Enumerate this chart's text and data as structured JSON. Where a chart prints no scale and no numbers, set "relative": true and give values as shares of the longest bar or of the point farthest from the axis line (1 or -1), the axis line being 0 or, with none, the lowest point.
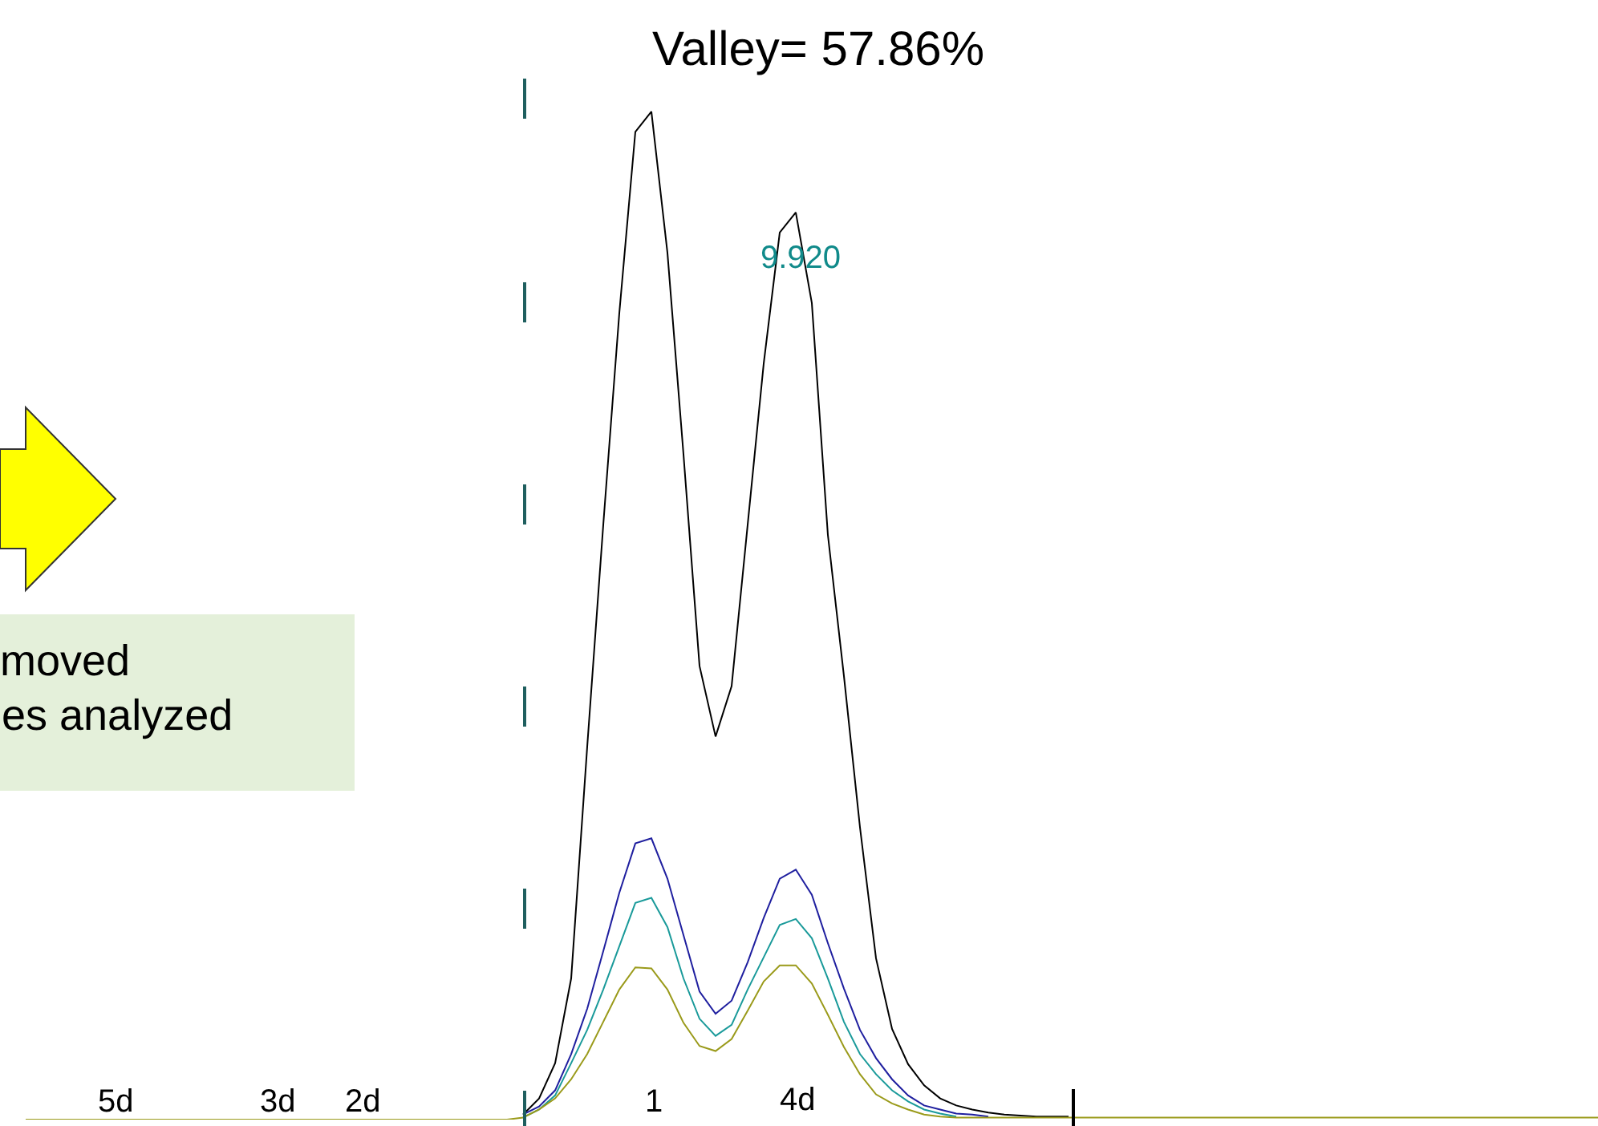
{
  "chart_data": {
    "type": "line",
    "title": "Valley= 57.86%",
    "relative": true,
    "grid": false,
    "categories": [
      null,
      null,
      null,
      null,
      null,
      null,
      null,
      null,
      null,
      null,
      null,
      null,
      null,
      null,
      null,
      null,
      null,
      null,
      null,
      null,
      null,
      null,
      null,
      null,
      null,
      null,
      null,
      null,
      null,
      null,
      null,
      null,
      null,
      null,
      null,
      null,
      null,
      null,
      null,
      null,
      null,
      null,
      null,
      null,
      null,
      null,
      null,
      null,
      null,
      null,
      null,
      null,
      null,
      null,
      null,
      null,
      null,
      null,
      null,
      null,
      null,
      null,
      null,
      null,
      null,
      null,
      null,
      null,
      null,
      null,
      null,
      null,
      null,
      null,
      null,
      null,
      null,
      null,
      null,
      null,
      null,
      null,
      null,
      null,
      null,
      null,
      null,
      null,
      null,
      null,
      null,
      null,
      null,
      null,
      null,
      null,
      null,
      null,
      null
    ],
    "series": [
      {
        "color": "#000000",
        "values": [
          null,
          null,
          null,
          null,
          null,
          null,
          null,
          null,
          null,
          null,
          null,
          null,
          null,
          null,
          null,
          null,
          null,
          null,
          null,
          null,
          null,
          null,
          null,
          null,
          null,
          null,
          null,
          null,
          null,
          null,
          null,
          0.005,
          0.021,
          0.056,
          0.14,
          0.37,
          0.59,
          0.8,
          0.98,
          1,
          0.86,
          0.66,
          0.45,
          0.38,
          0.43,
          0.59,
          0.75,
          0.88,
          0.9,
          0.81,
          0.58,
          0.44,
          0.29,
          0.16,
          0.09,
          0.055,
          0.034,
          0.021,
          0.014,
          0.01,
          0.007,
          0.005,
          0.004,
          0.003,
          0.003,
          0.003,
          null,
          null,
          null,
          null,
          null,
          null,
          null,
          null,
          null,
          null,
          null,
          null,
          null,
          null,
          null,
          null,
          null,
          null,
          null,
          null,
          null,
          null,
          null,
          null,
          null,
          null,
          null,
          null,
          null,
          null,
          null,
          null,
          null
        ]
      },
      {
        "color": "#1f1f9f",
        "values": [
          null,
          null,
          null,
          null,
          null,
          null,
          null,
          null,
          null,
          null,
          null,
          null,
          null,
          null,
          null,
          null,
          null,
          null,
          null,
          null,
          null,
          null,
          null,
          null,
          null,
          null,
          null,
          null,
          null,
          null,
          null,
          0.005,
          0.013,
          0.029,
          0.065,
          0.11,
          0.167,
          0.225,
          0.274,
          0.279,
          0.239,
          0.183,
          0.127,
          0.105,
          0.118,
          0.156,
          0.2,
          0.239,
          0.248,
          0.223,
          0.175,
          0.13,
          0.089,
          0.061,
          0.04,
          0.024,
          0.014,
          0.01,
          0.006,
          0.005,
          0.003,
          null,
          null,
          null,
          null,
          null,
          null,
          null,
          null,
          null,
          null,
          null,
          null,
          null,
          null,
          null,
          null,
          null,
          null,
          null,
          null,
          null,
          null,
          null,
          null,
          null,
          null,
          null,
          null,
          null,
          null,
          null,
          null,
          null,
          null,
          null,
          null,
          null,
          null
        ]
      },
      {
        "color": "#1a9a9a",
        "values": [
          null,
          null,
          null,
          null,
          null,
          null,
          null,
          null,
          null,
          null,
          null,
          null,
          null,
          null,
          null,
          null,
          null,
          null,
          null,
          null,
          null,
          null,
          null,
          null,
          null,
          null,
          null,
          null,
          null,
          null,
          null,
          0.002,
          0.01,
          0.024,
          0.056,
          0.089,
          0.129,
          0.172,
          0.215,
          0.22,
          0.191,
          0.14,
          0.1,
          0.083,
          0.094,
          0.129,
          0.161,
          0.193,
          0.199,
          0.18,
          0.14,
          0.097,
          0.065,
          0.045,
          0.029,
          0.018,
          0.01,
          0.006,
          0.003,
          null,
          null,
          null,
          null,
          null,
          null,
          null,
          null,
          null,
          null,
          null,
          null,
          null,
          null,
          null,
          null,
          null,
          null,
          null,
          null,
          null,
          null,
          null,
          null,
          null,
          null,
          null,
          null,
          null,
          null,
          null,
          null,
          null,
          null,
          null,
          null,
          null,
          null,
          null,
          null
        ]
      },
      {
        "color": "#9a9a1a",
        "values": [
          0,
          0,
          0,
          0,
          0,
          0,
          0,
          0,
          0,
          0,
          0,
          0,
          0,
          0,
          0,
          0,
          0,
          0,
          0,
          0,
          0,
          0,
          0,
          0,
          0,
          0,
          0,
          0,
          0,
          0,
          0,
          0.002,
          0.01,
          0.021,
          0.04,
          0.065,
          0.097,
          0.129,
          0.151,
          0.15,
          0.129,
          0.096,
          0.073,
          0.068,
          0.08,
          0.108,
          0.137,
          0.153,
          0.153,
          0.135,
          0.104,
          0.072,
          0.045,
          0.025,
          0.016,
          0.01,
          0.005,
          0.003,
          0.002,
          0.002,
          0.002,
          0.002,
          0.002,
          0.002,
          0.002,
          0.002,
          0.002,
          0.002,
          0.002,
          0.002,
          0.002,
          0.002,
          0.002,
          0.002,
          0.002,
          0.002,
          0.002,
          0.002,
          0.002,
          0.002,
          0.002,
          0.002,
          0.002,
          0.002,
          0.002,
          0.002,
          0.002,
          0.002,
          0.002,
          0.002,
          0.002,
          0.002,
          0.002,
          0.002,
          0.002,
          0.002,
          0.002,
          0.002,
          0.002
        ]
      }
    ],
    "annotations": [
      "9.920",
      "5d",
      "3d",
      "2d",
      "1",
      "4d",
      "moved",
      "es analyzed"
    ]
  }
}
